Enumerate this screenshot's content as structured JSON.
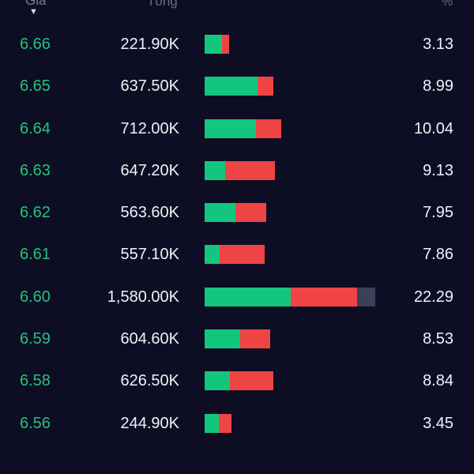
{
  "header": {
    "price_label": "Giá",
    "volume_label": "Tổng",
    "pct_label": "%",
    "sort_icon": "sort-desc-triangle"
  },
  "colors": {
    "price": "#23c47a",
    "buy": "#12c67e",
    "sell": "#ef4444",
    "neutral": "#3c3f58"
  },
  "rows": [
    {
      "price": "6.66",
      "volume": "221.90K",
      "percent": "3.13",
      "buy": 0.7,
      "sell": 0.27,
      "neutral": 0
    },
    {
      "price": "6.65",
      "volume": "637.50K",
      "percent": "8.99",
      "buy": 2.1,
      "sell": 0.62,
      "neutral": 0
    },
    {
      "price": "6.64",
      "volume": "712.00K",
      "percent": "10.04",
      "buy": 2.03,
      "sell": 1.0,
      "neutral": 0
    },
    {
      "price": "6.63",
      "volume": "647.20K",
      "percent": "9.13",
      "buy": 0.8,
      "sell": 1.97,
      "neutral": 0
    },
    {
      "price": "6.62",
      "volume": "563.60K",
      "percent": "7.95",
      "buy": 1.22,
      "sell": 1.22,
      "neutral": 0
    },
    {
      "price": "6.61",
      "volume": "557.10K",
      "percent": "7.86",
      "buy": 0.58,
      "sell": 1.8,
      "neutral": 0
    },
    {
      "price": "6.60",
      "volume": "1,580.00K",
      "percent": "22.29",
      "buy": 3.4,
      "sell": 2.63,
      "neutral": 0.72
    },
    {
      "price": "6.59",
      "volume": "604.60K",
      "percent": "8.53",
      "buy": 1.42,
      "sell": 1.18,
      "neutral": 0
    },
    {
      "price": "6.58",
      "volume": "626.50K",
      "percent": "8.84",
      "buy": 0.99,
      "sell": 1.72,
      "neutral": 0
    },
    {
      "price": "6.56",
      "volume": "244.90K",
      "percent": "3.45",
      "buy": 0.56,
      "sell": 0.5,
      "neutral": 0
    }
  ]
}
